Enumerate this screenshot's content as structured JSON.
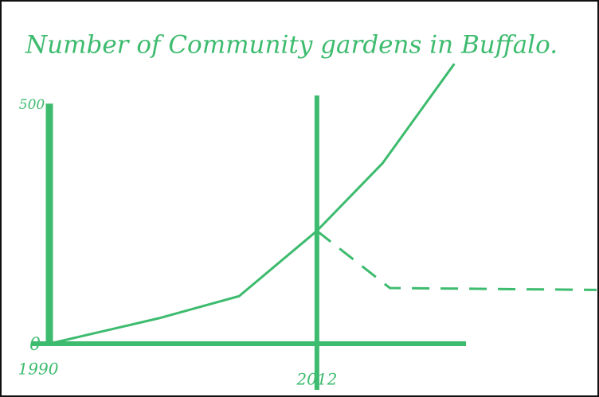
{
  "chart_data": {
    "type": "line",
    "title": "Number of Community gardens in Buffalo.",
    "color": "#3dbb6e",
    "series": [
      {
        "x": [
          1990,
          1999,
          2005.6,
          2012,
          2017.4,
          2023.3
        ],
        "values": [
          0,
          53,
          99,
          235,
          376,
          583
        ],
        "style": "solid"
      },
      {
        "x": [
          2012,
          2018,
          2035
        ],
        "values": [
          235,
          116,
          112
        ],
        "style": "dashed"
      }
    ],
    "xlim": [
      1990,
      2035
    ],
    "xticks": [
      1990,
      2012
    ],
    "ylim": [
      0,
      580
    ],
    "yticks": [
      0,
      500
    ]
  }
}
